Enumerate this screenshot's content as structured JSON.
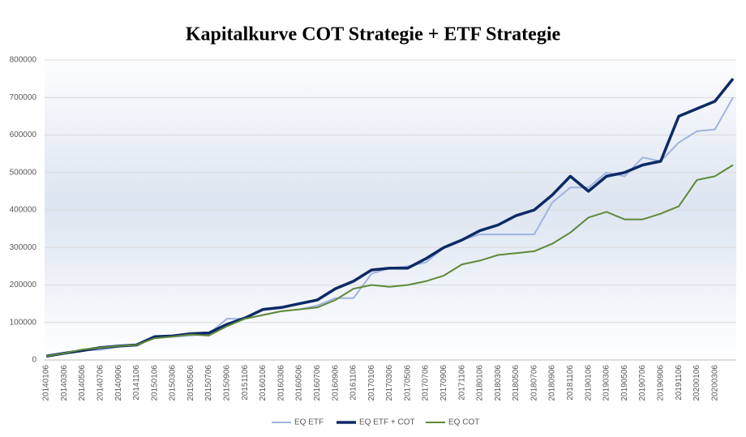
{
  "chart_data": {
    "type": "line",
    "title": "Kapitalkurve COT Strategie + ETF Strategie",
    "categories": [
      "20140106",
      "20140306",
      "20140506",
      "20140706",
      "20140906",
      "20141106",
      "20150106",
      "20150306",
      "20150506",
      "20150706",
      "20150906",
      "20151106",
      "20160106",
      "20160306",
      "20160506",
      "20160706",
      "20160906",
      "20161106",
      "20170106",
      "20170306",
      "20170506",
      "20170706",
      "20170906",
      "20171106",
      "20180106",
      "20180306",
      "20180506",
      "20180706",
      "20180906",
      "20181106",
      "20190106",
      "20190306",
      "20190506",
      "20190706",
      "20190906",
      "20191106",
      "20200106",
      "20200306",
      null
    ],
    "series": [
      {
        "name": "EQ ETF",
        "color": "#9fb4e0",
        "values": [
          10000,
          18000,
          25000,
          27000,
          35000,
          40000,
          60000,
          62000,
          65000,
          70000,
          110000,
          110000,
          120000,
          130000,
          135000,
          145000,
          165000,
          165000,
          230000,
          245000,
          250000,
          260000,
          300000,
          320000,
          335000,
          335000,
          335000,
          335000,
          420000,
          460000,
          460000,
          500000,
          490000,
          540000,
          530000,
          580000,
          610000,
          615000,
          700000
        ]
      },
      {
        "name": "EQ ETF + COT",
        "color": "#0d2a66",
        "values": [
          10000,
          18000,
          25000,
          33000,
          37000,
          40000,
          62000,
          64000,
          70000,
          72000,
          95000,
          112000,
          135000,
          140000,
          150000,
          160000,
          190000,
          210000,
          240000,
          245000,
          245000,
          270000,
          300000,
          320000,
          345000,
          360000,
          385000,
          400000,
          440000,
          490000,
          450000,
          490000,
          500000,
          520000,
          530000,
          650000,
          670000,
          690000,
          750000
        ]
      },
      {
        "name": "EQ COT",
        "color": "#5e8a3a",
        "values": [
          10000,
          18000,
          28000,
          33000,
          37000,
          40000,
          58000,
          62000,
          68000,
          65000,
          90000,
          110000,
          120000,
          130000,
          135000,
          140000,
          160000,
          190000,
          200000,
          195000,
          200000,
          210000,
          225000,
          255000,
          265000,
          280000,
          285000,
          290000,
          310000,
          340000,
          380000,
          395000,
          375000,
          375000,
          390000,
          410000,
          480000,
          490000,
          520000
        ]
      }
    ],
    "ylim": [
      0,
      800000
    ],
    "yticks": [
      0,
      100000,
      200000,
      300000,
      400000,
      500000,
      600000,
      700000,
      800000
    ],
    "grid": true,
    "legend": "bottom"
  }
}
